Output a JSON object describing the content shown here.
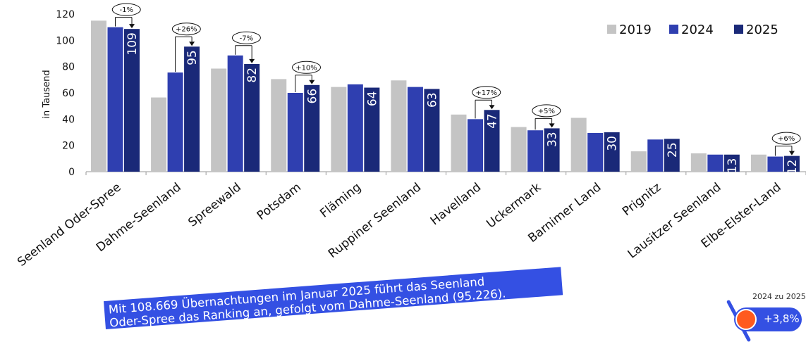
{
  "chart_data": {
    "type": "bar",
    "ylabel": "in Tausend",
    "ylim": [
      0,
      120
    ],
    "yticks": [
      0,
      20,
      40,
      60,
      80,
      100,
      120
    ],
    "categories": [
      "Seenland Oder-Spree",
      "Dahme-Seenland",
      "Spreewald",
      "Potsdam",
      "Fläming",
      "Ruppiner Seenland",
      "Havelland",
      "Uckermark",
      "Barnimer Land",
      "Prignitz",
      "Lausitzer Seenland",
      "Elbe-Elster-Land"
    ],
    "series": [
      {
        "name": "2019",
        "color": "#c4c4c4",
        "values": [
          115,
          56.5,
          78.5,
          70.5,
          64.5,
          69.5,
          43.5,
          34,
          41,
          15.5,
          14,
          13
        ]
      },
      {
        "name": "2024",
        "color": "#2f3fb0",
        "values": [
          110,
          75.5,
          88.5,
          60,
          66.5,
          64.5,
          40,
          31.5,
          29.5,
          24.5,
          13,
          11.5
        ]
      },
      {
        "name": "2025",
        "color": "#1a2978",
        "values": [
          108.669,
          95.226,
          82,
          66,
          64,
          63,
          47,
          33,
          30,
          25,
          13,
          12
        ]
      }
    ],
    "data_labels_2025": [
      "109",
      "95",
      "82",
      "66",
      "64",
      "63",
      "47",
      "33",
      "30",
      "25",
      "13",
      "12"
    ],
    "change_annotations": [
      {
        "category_index": 0,
        "label": "-1%"
      },
      {
        "category_index": 1,
        "label": "+26%"
      },
      {
        "category_index": 2,
        "label": "-7%"
      },
      {
        "category_index": 3,
        "label": "+10%"
      },
      {
        "category_index": 6,
        "label": "+17%"
      },
      {
        "category_index": 7,
        "label": "+5%"
      },
      {
        "category_index": 11,
        "label": "+6%"
      }
    ],
    "legend_position": "top-right",
    "grid": false
  },
  "callout": {
    "line1": "Mit 108.669 Übernachtungen im Januar 2025 führt das Seenland",
    "line2": "Oder-Spree das Ranking an, gefolgt vom Dahme-Seenland (95.226)."
  },
  "badge": {
    "label": "2024 zu 2025",
    "value": "+3,8%"
  }
}
